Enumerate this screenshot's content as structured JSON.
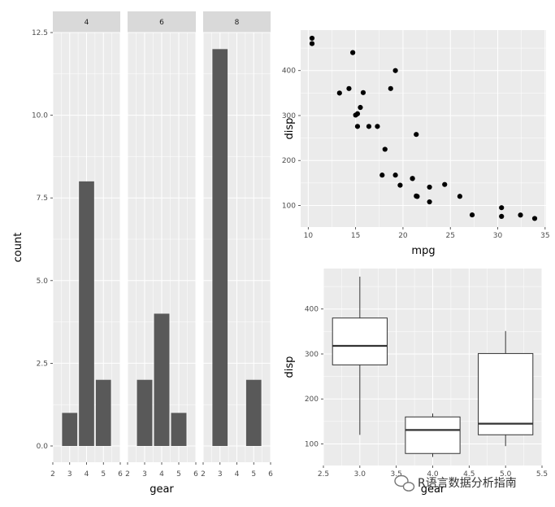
{
  "chart_data": [
    {
      "type": "bar",
      "facet_by": "cyl",
      "facets": [
        {
          "label": "4",
          "x": [
            3,
            4,
            5
          ],
          "values": [
            1,
            8,
            2
          ]
        },
        {
          "label": "6",
          "x": [
            3,
            4,
            5
          ],
          "values": [
            2,
            4,
            1
          ]
        },
        {
          "label": "8",
          "x": [
            3,
            4,
            5
          ],
          "values": [
            12,
            0,
            2
          ]
        }
      ],
      "xlabel": "gear",
      "ylabel": "count",
      "xlim": [
        2,
        6
      ],
      "ylim": [
        0,
        12.5
      ],
      "x_ticks": [
        "2",
        "3",
        "4",
        "5",
        "6"
      ],
      "y_ticks": [
        "0.0",
        "2.5",
        "5.0",
        "7.5",
        "10.0",
        "12.5"
      ],
      "bar_color": "#595959",
      "panel_bg": "#ebebeb",
      "strip_bg": "#d9d9d9",
      "grid": true
    },
    {
      "type": "scatter",
      "x": [
        21.0,
        21.0,
        22.8,
        21.4,
        18.7,
        18.1,
        14.3,
        24.4,
        22.8,
        19.2,
        17.8,
        16.4,
        17.3,
        15.2,
        10.4,
        10.4,
        14.7,
        32.4,
        30.4,
        33.9,
        21.5,
        15.5,
        15.2,
        13.3,
        19.2,
        27.3,
        26.0,
        30.4,
        15.8,
        19.7,
        15.0,
        21.4
      ],
      "y": [
        160,
        160,
        108,
        258,
        360,
        225,
        360,
        146.7,
        140.8,
        167.6,
        167.6,
        275.8,
        275.8,
        275.8,
        472,
        460,
        440,
        78.7,
        75.7,
        71.1,
        120.1,
        318,
        304,
        350,
        400,
        79,
        120.3,
        95.1,
        351,
        145,
        301,
        121
      ],
      "xlabel": "mpg",
      "ylabel": "disp",
      "xlim": [
        9.2,
        35.1
      ],
      "ylim": [
        52,
        490
      ],
      "x_ticks": [
        "10",
        "15",
        "20",
        "25",
        "30",
        "35"
      ],
      "y_ticks": [
        "100",
        "200",
        "300",
        "400"
      ],
      "point_color": "#000000",
      "grid": true
    },
    {
      "type": "box",
      "x": [
        3,
        4,
        5
      ],
      "boxes": [
        {
          "x": 3,
          "min": 120.1,
          "q1": 275.8,
          "median": 318,
          "q3": 380,
          "max": 472
        },
        {
          "x": 4,
          "min": 71.1,
          "q1": 78.7,
          "median": 130.9,
          "q3": 160,
          "max": 167.6
        },
        {
          "x": 5,
          "min": 95.1,
          "q1": 120.3,
          "median": 145,
          "q3": 301,
          "max": 351
        }
      ],
      "xlabel": "gear",
      "ylabel": "disp",
      "xlim": [
        2.5,
        5.5
      ],
      "ylim": [
        52,
        490
      ],
      "x_ticks": [
        "2.5",
        "3.0",
        "3.5",
        "4.0",
        "4.5",
        "5.0",
        "5.5"
      ],
      "y_ticks": [
        "100",
        "200",
        "300",
        "400"
      ],
      "box_fill": "#ffffff",
      "box_stroke": "#333333",
      "grid": true
    }
  ],
  "watermark": "R语言数据分析指南"
}
